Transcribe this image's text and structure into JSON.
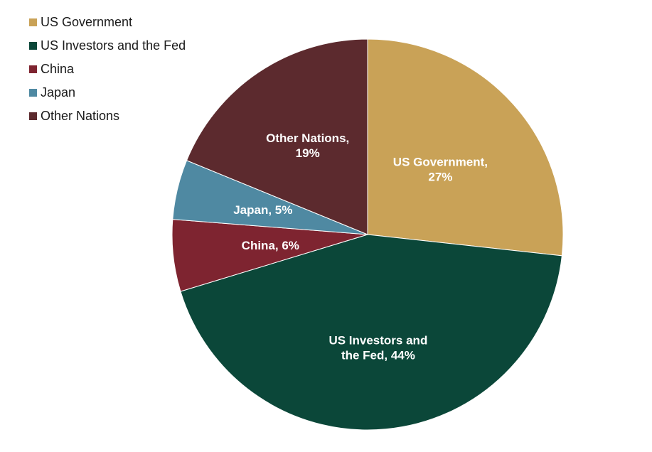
{
  "chart_data": {
    "type": "pie",
    "title": "",
    "start_angle_deg": 90,
    "direction": "clockwise",
    "legend_position": "top-left",
    "slices": [
      {
        "name": "US Government",
        "value": 27,
        "color": "#C9A257",
        "label_lines": [
          "US Government,",
          "27%"
        ]
      },
      {
        "name": "US Investors and the Fed",
        "value": 44,
        "color": "#0B4739",
        "label_lines": [
          "US Investors and",
          "the Fed, 44%"
        ]
      },
      {
        "name": "China",
        "value": 6,
        "color": "#7E2430",
        "label_lines": [
          "China, 6%"
        ]
      },
      {
        "name": "Japan",
        "value": 5,
        "color": "#4F89A2",
        "label_lines": [
          "Japan, 5%"
        ]
      },
      {
        "name": "Other Nations",
        "value": 19,
        "color": "#5C2A2E",
        "label_lines": [
          "Other Nations,",
          "19%"
        ]
      }
    ]
  }
}
